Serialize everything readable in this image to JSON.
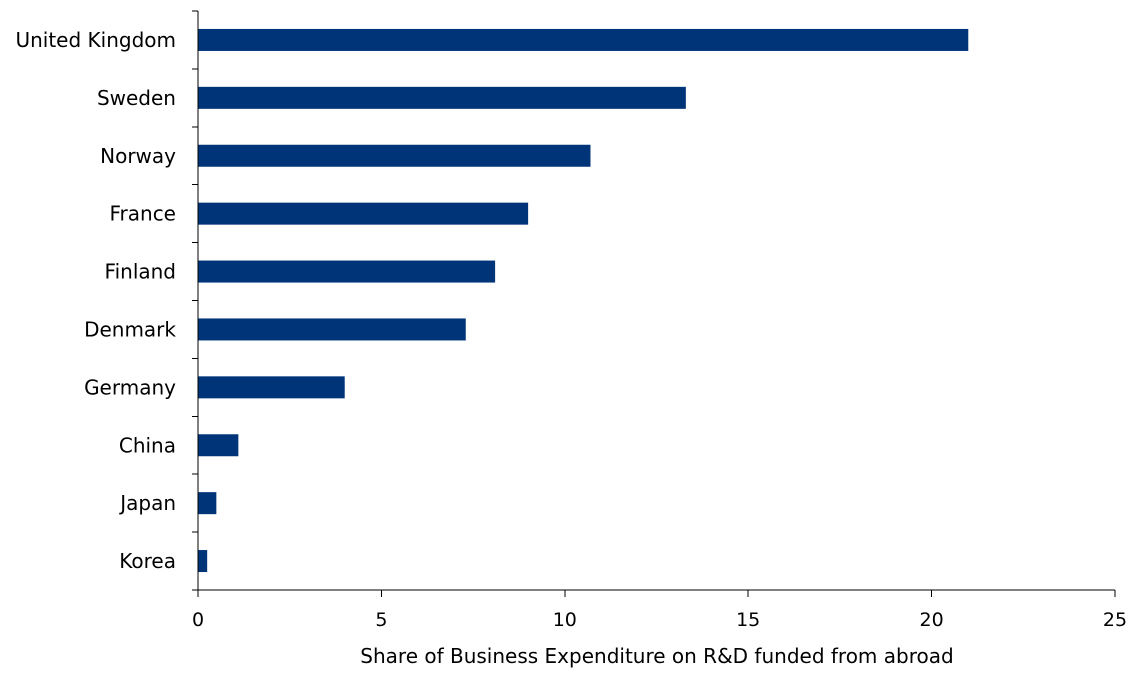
{
  "chart_data": {
    "type": "bar",
    "orientation": "horizontal",
    "title": "",
    "xlabel": "Share of Business Expenditure on R&D funded from abroad",
    "ylabel": "",
    "categories": [
      "United Kingdom",
      "Sweden",
      "Norway",
      "France",
      "Finland",
      "Denmark",
      "Germany",
      "China",
      "Japan",
      "Korea"
    ],
    "values": [
      21.0,
      13.3,
      10.7,
      9.0,
      8.1,
      7.3,
      4.0,
      1.1,
      0.5,
      0.25
    ],
    "xlim": [
      0,
      25
    ],
    "xticks": [
      "0",
      "5",
      "10",
      "15",
      "20",
      "25"
    ],
    "grid": false,
    "legend": "none",
    "bar_color": "#003479"
  }
}
